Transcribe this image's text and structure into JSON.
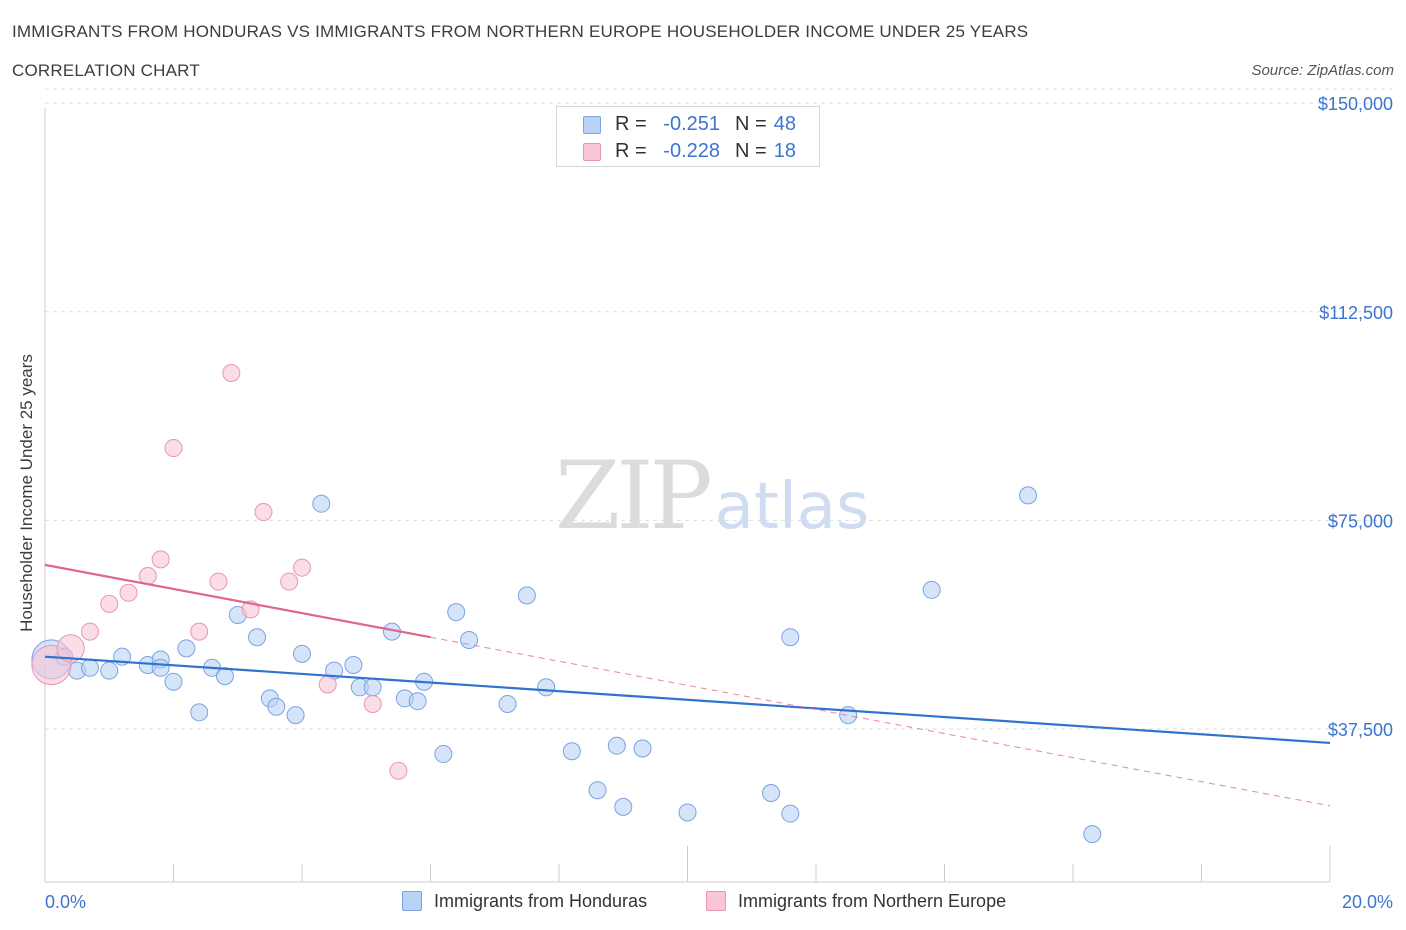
{
  "header": {
    "title": "IMMIGRANTS FROM HONDURAS VS IMMIGRANTS FROM NORTHERN EUROPE HOUSEHOLDER INCOME UNDER 25 YEARS",
    "subtitle": "CORRELATION CHART",
    "source": "Source: ZipAtlas.com"
  },
  "watermark": {
    "zip": "ZIP",
    "atlas": "atlas"
  },
  "stats": {
    "rows": [
      {
        "r_label": "R =",
        "r_value": "-0.251",
        "n_label": "N =",
        "n_value": "48"
      },
      {
        "r_label": "R =",
        "r_value": "-0.228",
        "n_label": "N =",
        "n_value": "18"
      }
    ]
  },
  "legend": {
    "items": [
      {
        "label": "Immigrants from Honduras"
      },
      {
        "label": "Immigrants from Northern Europe"
      }
    ]
  },
  "colors": {
    "series1_fill": "#b9d2f5",
    "series1_stroke": "#7aa3e0",
    "series1_line": "#2f72d0",
    "series2_fill": "#f8c6d5",
    "series2_stroke": "#e896b1",
    "series2_line": "#e06690",
    "axis_label": "#3b74d1",
    "grid": "#dddddd"
  },
  "chart_data": {
    "type": "scatter",
    "title": "IMMIGRANTS FROM HONDURAS VS IMMIGRANTS FROM NORTHERN EUROPE HOUSEHOLDER INCOME UNDER 25 YEARS",
    "xlabel": "",
    "ylabel": "Householder Income Under 25 years",
    "xlim": [
      0,
      20
    ],
    "ylim": [
      10000,
      152000
    ],
    "x_tick_labels": [
      "0.0%",
      "20.0%"
    ],
    "y_ticks": [
      37500,
      75000,
      112500,
      150000
    ],
    "y_tick_labels": [
      "$37,500",
      "$75,000",
      "$112,500",
      "$150,000"
    ],
    "grid": true,
    "legend_position": "bottom",
    "series": [
      {
        "name": "Immigrants from Honduras",
        "points": [
          [
            0.1,
            50000,
            2.3
          ],
          [
            0.3,
            50500,
            1
          ],
          [
            0.5,
            48000,
            1
          ],
          [
            0.7,
            48500,
            1
          ],
          [
            1.0,
            48000,
            1
          ],
          [
            1.2,
            50500,
            1
          ],
          [
            1.6,
            49000,
            1
          ],
          [
            1.8,
            50000,
            1
          ],
          [
            1.8,
            48500,
            1
          ],
          [
            2.0,
            46000,
            1
          ],
          [
            2.2,
            52000,
            1
          ],
          [
            2.4,
            40500,
            1
          ],
          [
            2.6,
            48500,
            1
          ],
          [
            2.8,
            47000,
            1
          ],
          [
            3.0,
            58000,
            1
          ],
          [
            3.3,
            54000,
            1
          ],
          [
            3.5,
            43000,
            1
          ],
          [
            3.6,
            41500,
            1
          ],
          [
            3.9,
            40000,
            1
          ],
          [
            4.0,
            51000,
            1
          ],
          [
            4.3,
            78000,
            1
          ],
          [
            4.5,
            48000,
            1
          ],
          [
            4.8,
            49000,
            1
          ],
          [
            4.9,
            45000,
            1
          ],
          [
            5.1,
            45000,
            1
          ],
          [
            5.4,
            55000,
            1
          ],
          [
            5.6,
            43000,
            1
          ],
          [
            5.8,
            42500,
            1
          ],
          [
            5.9,
            46000,
            1
          ],
          [
            6.2,
            33000,
            1
          ],
          [
            6.4,
            58500,
            1
          ],
          [
            6.6,
            53500,
            1
          ],
          [
            7.2,
            42000,
            1
          ],
          [
            7.5,
            61500,
            1
          ],
          [
            7.8,
            45000,
            1
          ],
          [
            8.2,
            33500,
            1
          ],
          [
            8.6,
            26500,
            1
          ],
          [
            8.9,
            34500,
            1
          ],
          [
            9.0,
            23500,
            1
          ],
          [
            9.3,
            34000,
            1
          ],
          [
            10.0,
            22500,
            1
          ],
          [
            11.3,
            26000,
            1
          ],
          [
            11.6,
            54000,
            1
          ],
          [
            11.6,
            22300,
            1
          ],
          [
            12.5,
            40000,
            1
          ],
          [
            13.8,
            62500,
            1
          ],
          [
            15.3,
            79500,
            1
          ],
          [
            16.3,
            18600,
            1
          ]
        ],
        "trend": {
          "x": [
            0,
            20
          ],
          "y": [
            50500,
            35000
          ]
        }
      },
      {
        "name": "Immigrants from Northern Europe",
        "points": [
          [
            0.1,
            49000,
            2.3
          ],
          [
            0.4,
            52000,
            1.6
          ],
          [
            0.7,
            55000,
            1
          ],
          [
            1.0,
            60000,
            1
          ],
          [
            1.3,
            62000,
            1
          ],
          [
            1.6,
            65000,
            1
          ],
          [
            1.8,
            68000,
            1
          ],
          [
            2.0,
            88000,
            1
          ],
          [
            2.4,
            55000,
            1
          ],
          [
            2.7,
            64000,
            1
          ],
          [
            2.9,
            101500,
            1
          ],
          [
            3.2,
            59000,
            1
          ],
          [
            3.4,
            76500,
            1
          ],
          [
            3.8,
            64000,
            1
          ],
          [
            4.0,
            66500,
            1
          ],
          [
            4.4,
            45500,
            1
          ],
          [
            5.1,
            42000,
            1
          ],
          [
            5.5,
            30000,
            1
          ]
        ],
        "trend": {
          "x": [
            0,
            6
          ],
          "y": [
            67000,
            54000
          ]
        },
        "trend_extension": {
          "x": [
            6,
            20
          ],
          "y": [
            54000,
            23700
          ]
        }
      }
    ]
  }
}
